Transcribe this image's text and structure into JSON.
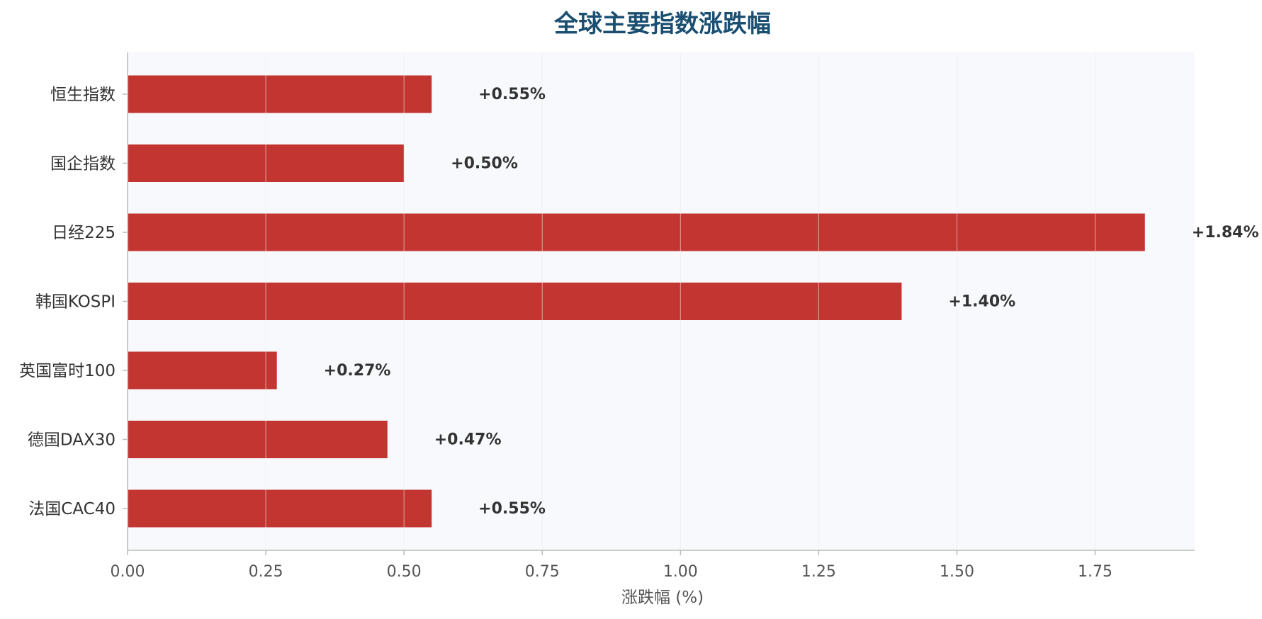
{
  "chart_data": {
    "type": "bar",
    "orientation": "horizontal",
    "title": "全球主要指数涨跌幅",
    "xlabel": "涨跌幅 (%)",
    "ylabel": "",
    "categories": [
      "恒生指数",
      "国企指数",
      "日经225",
      "韩国KOSPI",
      "英国富时100",
      "德国DAX30",
      "法国CAC40"
    ],
    "values": [
      0.55,
      0.5,
      1.84,
      1.4,
      0.27,
      0.47,
      0.55
    ],
    "value_labels": [
      "+0.55%",
      "+0.50%",
      "+1.84%",
      "+1.40%",
      "+0.27%",
      "+0.47%",
      "+0.55%"
    ],
    "xlim": [
      0,
      1.93
    ],
    "xticks": [
      0.0,
      0.25,
      0.5,
      0.75,
      1.0,
      1.25,
      1.5,
      1.75
    ],
    "xtick_labels": [
      "0.00",
      "0.25",
      "0.50",
      "0.75",
      "1.00",
      "1.25",
      "1.50",
      "1.75"
    ],
    "grid": true,
    "legend": "none",
    "colors": {
      "bar": "#c23531",
      "title": "#1a4f72",
      "plot_bg": "#f8f9fc",
      "grid": "#e2e4e8",
      "axis": "#bbbbbb"
    }
  }
}
